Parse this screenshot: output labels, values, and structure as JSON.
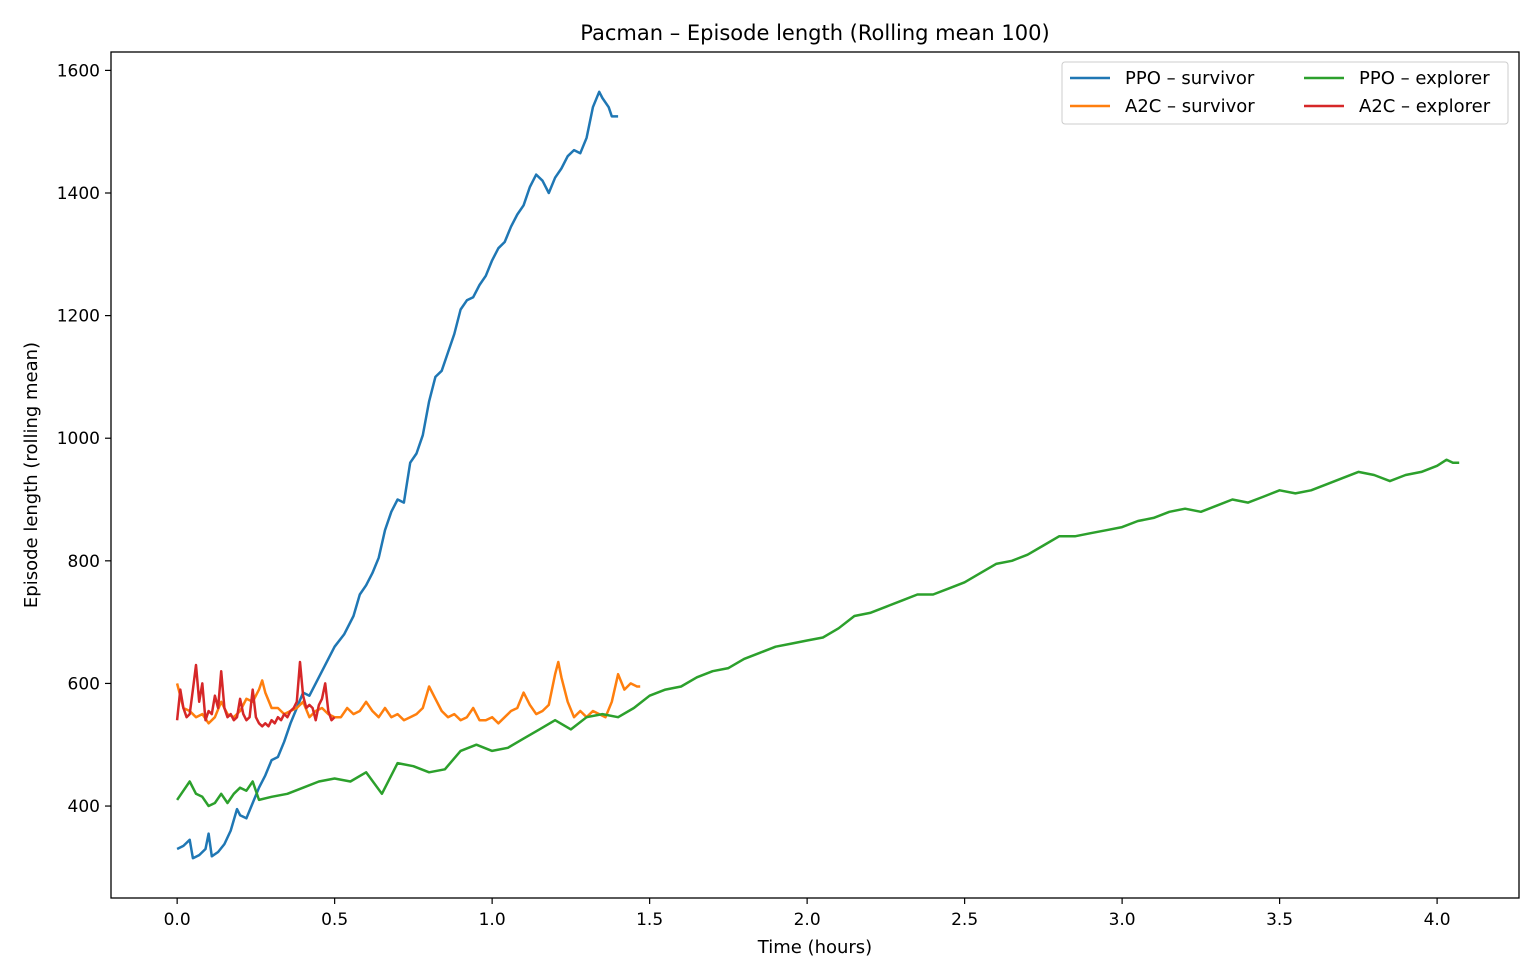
{
  "chart_data": {
    "type": "line",
    "title": "Pacman – Episode length (Rolling mean 100)",
    "xlabel": "Time (hours)",
    "ylabel": "Episode length (rolling mean)",
    "xlim": [
      -0.21,
      4.26
    ],
    "ylim": [
      250,
      1630
    ],
    "xticks": [
      0.0,
      0.5,
      1.0,
      1.5,
      2.0,
      2.5,
      3.0,
      3.5,
      4.0
    ],
    "xtick_labels": [
      "0.0",
      "0.5",
      "1.0",
      "1.5",
      "2.0",
      "2.5",
      "3.0",
      "3.5",
      "4.0"
    ],
    "yticks": [
      400,
      600,
      800,
      1000,
      1200,
      1400,
      1600
    ],
    "ytick_labels": [
      "400",
      "600",
      "800",
      "1000",
      "1200",
      "1400",
      "1600"
    ],
    "grid": false,
    "legend_position": "top-right",
    "legend_columns": 2,
    "series": [
      {
        "name": "PPO – survivor",
        "color": "#1f77b4",
        "points": [
          [
            0.0,
            330
          ],
          [
            0.02,
            335
          ],
          [
            0.04,
            345
          ],
          [
            0.05,
            315
          ],
          [
            0.07,
            320
          ],
          [
            0.09,
            330
          ],
          [
            0.1,
            355
          ],
          [
            0.11,
            318
          ],
          [
            0.13,
            325
          ],
          [
            0.15,
            338
          ],
          [
            0.17,
            360
          ],
          [
            0.19,
            395
          ],
          [
            0.2,
            385
          ],
          [
            0.22,
            380
          ],
          [
            0.24,
            405
          ],
          [
            0.26,
            430
          ],
          [
            0.28,
            450
          ],
          [
            0.3,
            475
          ],
          [
            0.32,
            480
          ],
          [
            0.34,
            505
          ],
          [
            0.36,
            535
          ],
          [
            0.38,
            560
          ],
          [
            0.4,
            585
          ],
          [
            0.42,
            580
          ],
          [
            0.44,
            600
          ],
          [
            0.46,
            620
          ],
          [
            0.48,
            640
          ],
          [
            0.5,
            660
          ],
          [
            0.53,
            680
          ],
          [
            0.56,
            710
          ],
          [
            0.58,
            745
          ],
          [
            0.6,
            760
          ],
          [
            0.62,
            780
          ],
          [
            0.64,
            805
          ],
          [
            0.66,
            850
          ],
          [
            0.68,
            880
          ],
          [
            0.7,
            900
          ],
          [
            0.72,
            895
          ],
          [
            0.74,
            960
          ],
          [
            0.76,
            975
          ],
          [
            0.78,
            1005
          ],
          [
            0.8,
            1060
          ],
          [
            0.82,
            1100
          ],
          [
            0.84,
            1110
          ],
          [
            0.86,
            1140
          ],
          [
            0.88,
            1170
          ],
          [
            0.9,
            1210
          ],
          [
            0.92,
            1225
          ],
          [
            0.94,
            1230
          ],
          [
            0.96,
            1250
          ],
          [
            0.98,
            1265
          ],
          [
            1.0,
            1290
          ],
          [
            1.02,
            1310
          ],
          [
            1.04,
            1320
          ],
          [
            1.06,
            1345
          ],
          [
            1.08,
            1365
          ],
          [
            1.1,
            1380
          ],
          [
            1.12,
            1410
          ],
          [
            1.14,
            1430
          ],
          [
            1.16,
            1420
          ],
          [
            1.18,
            1400
          ],
          [
            1.2,
            1425
          ],
          [
            1.22,
            1440
          ],
          [
            1.24,
            1460
          ],
          [
            1.26,
            1470
          ],
          [
            1.28,
            1465
          ],
          [
            1.3,
            1490
          ],
          [
            1.32,
            1540
          ],
          [
            1.34,
            1565
          ],
          [
            1.35,
            1555
          ],
          [
            1.37,
            1540
          ],
          [
            1.38,
            1525
          ],
          [
            1.4,
            1525
          ]
        ]
      },
      {
        "name": "A2C – survivor",
        "color": "#ff7f0e",
        "points": [
          [
            0.0,
            600
          ],
          [
            0.02,
            560
          ],
          [
            0.04,
            555
          ],
          [
            0.06,
            545
          ],
          [
            0.08,
            550
          ],
          [
            0.1,
            535
          ],
          [
            0.12,
            545
          ],
          [
            0.14,
            570
          ],
          [
            0.16,
            550
          ],
          [
            0.18,
            545
          ],
          [
            0.2,
            555
          ],
          [
            0.22,
            575
          ],
          [
            0.24,
            570
          ],
          [
            0.26,
            590
          ],
          [
            0.27,
            605
          ],
          [
            0.28,
            585
          ],
          [
            0.3,
            560
          ],
          [
            0.32,
            560
          ],
          [
            0.34,
            550
          ],
          [
            0.36,
            555
          ],
          [
            0.38,
            560
          ],
          [
            0.4,
            570
          ],
          [
            0.42,
            545
          ],
          [
            0.44,
            555
          ],
          [
            0.46,
            560
          ],
          [
            0.48,
            550
          ],
          [
            0.5,
            545
          ],
          [
            0.52,
            545
          ],
          [
            0.54,
            560
          ],
          [
            0.56,
            550
          ],
          [
            0.58,
            555
          ],
          [
            0.6,
            570
          ],
          [
            0.62,
            555
          ],
          [
            0.64,
            545
          ],
          [
            0.66,
            560
          ],
          [
            0.68,
            545
          ],
          [
            0.7,
            550
          ],
          [
            0.72,
            540
          ],
          [
            0.74,
            545
          ],
          [
            0.76,
            550
          ],
          [
            0.78,
            560
          ],
          [
            0.8,
            595
          ],
          [
            0.82,
            575
          ],
          [
            0.84,
            555
          ],
          [
            0.86,
            545
          ],
          [
            0.88,
            550
          ],
          [
            0.9,
            540
          ],
          [
            0.92,
            545
          ],
          [
            0.94,
            560
          ],
          [
            0.96,
            540
          ],
          [
            0.98,
            540
          ],
          [
            1.0,
            545
          ],
          [
            1.02,
            535
          ],
          [
            1.04,
            545
          ],
          [
            1.06,
            555
          ],
          [
            1.08,
            560
          ],
          [
            1.1,
            585
          ],
          [
            1.12,
            565
          ],
          [
            1.14,
            550
          ],
          [
            1.16,
            555
          ],
          [
            1.18,
            565
          ],
          [
            1.2,
            615
          ],
          [
            1.21,
            635
          ],
          [
            1.22,
            610
          ],
          [
            1.24,
            570
          ],
          [
            1.26,
            545
          ],
          [
            1.28,
            555
          ],
          [
            1.3,
            545
          ],
          [
            1.32,
            555
          ],
          [
            1.34,
            550
          ],
          [
            1.36,
            545
          ],
          [
            1.38,
            570
          ],
          [
            1.4,
            615
          ],
          [
            1.42,
            590
          ],
          [
            1.44,
            600
          ],
          [
            1.46,
            595
          ],
          [
            1.47,
            595
          ]
        ]
      },
      {
        "name": "PPO – explorer",
        "color": "#2ca02c",
        "points": [
          [
            0.0,
            410
          ],
          [
            0.02,
            425
          ],
          [
            0.04,
            440
          ],
          [
            0.06,
            420
          ],
          [
            0.08,
            415
          ],
          [
            0.1,
            400
          ],
          [
            0.12,
            405
          ],
          [
            0.14,
            420
          ],
          [
            0.16,
            405
          ],
          [
            0.18,
            420
          ],
          [
            0.2,
            430
          ],
          [
            0.22,
            425
          ],
          [
            0.24,
            440
          ],
          [
            0.26,
            410
          ],
          [
            0.3,
            415
          ],
          [
            0.35,
            420
          ],
          [
            0.4,
            430
          ],
          [
            0.45,
            440
          ],
          [
            0.5,
            445
          ],
          [
            0.55,
            440
          ],
          [
            0.6,
            455
          ],
          [
            0.65,
            420
          ],
          [
            0.7,
            470
          ],
          [
            0.75,
            465
          ],
          [
            0.8,
            455
          ],
          [
            0.85,
            460
          ],
          [
            0.9,
            490
          ],
          [
            0.95,
            500
          ],
          [
            1.0,
            490
          ],
          [
            1.05,
            495
          ],
          [
            1.1,
            510
          ],
          [
            1.15,
            525
          ],
          [
            1.2,
            540
          ],
          [
            1.25,
            525
          ],
          [
            1.3,
            545
          ],
          [
            1.35,
            550
          ],
          [
            1.4,
            545
          ],
          [
            1.45,
            560
          ],
          [
            1.5,
            580
          ],
          [
            1.55,
            590
          ],
          [
            1.6,
            595
          ],
          [
            1.65,
            610
          ],
          [
            1.7,
            620
          ],
          [
            1.75,
            625
          ],
          [
            1.8,
            640
          ],
          [
            1.85,
            650
          ],
          [
            1.9,
            660
          ],
          [
            1.95,
            665
          ],
          [
            2.0,
            670
          ],
          [
            2.05,
            675
          ],
          [
            2.1,
            690
          ],
          [
            2.15,
            710
          ],
          [
            2.2,
            715
          ],
          [
            2.25,
            725
          ],
          [
            2.3,
            735
          ],
          [
            2.35,
            745
          ],
          [
            2.4,
            745
          ],
          [
            2.45,
            755
          ],
          [
            2.5,
            765
          ],
          [
            2.55,
            780
          ],
          [
            2.6,
            795
          ],
          [
            2.65,
            800
          ],
          [
            2.7,
            810
          ],
          [
            2.75,
            825
          ],
          [
            2.8,
            840
          ],
          [
            2.85,
            840
          ],
          [
            2.9,
            845
          ],
          [
            2.95,
            850
          ],
          [
            3.0,
            855
          ],
          [
            3.05,
            865
          ],
          [
            3.1,
            870
          ],
          [
            3.15,
            880
          ],
          [
            3.2,
            885
          ],
          [
            3.25,
            880
          ],
          [
            3.3,
            890
          ],
          [
            3.35,
            900
          ],
          [
            3.4,
            895
          ],
          [
            3.45,
            905
          ],
          [
            3.5,
            915
          ],
          [
            3.55,
            910
          ],
          [
            3.6,
            915
          ],
          [
            3.65,
            925
          ],
          [
            3.7,
            935
          ],
          [
            3.75,
            945
          ],
          [
            3.8,
            940
          ],
          [
            3.85,
            930
          ],
          [
            3.9,
            940
          ],
          [
            3.95,
            945
          ],
          [
            4.0,
            955
          ],
          [
            4.03,
            965
          ],
          [
            4.05,
            960
          ],
          [
            4.07,
            960
          ]
        ]
      },
      {
        "name": "A2C – explorer",
        "color": "#d62728",
        "points": [
          [
            0.0,
            540
          ],
          [
            0.01,
            590
          ],
          [
            0.02,
            560
          ],
          [
            0.03,
            545
          ],
          [
            0.04,
            550
          ],
          [
            0.05,
            590
          ],
          [
            0.06,
            630
          ],
          [
            0.07,
            570
          ],
          [
            0.08,
            600
          ],
          [
            0.09,
            540
          ],
          [
            0.1,
            555
          ],
          [
            0.11,
            550
          ],
          [
            0.12,
            580
          ],
          [
            0.13,
            560
          ],
          [
            0.14,
            620
          ],
          [
            0.15,
            560
          ],
          [
            0.16,
            545
          ],
          [
            0.17,
            550
          ],
          [
            0.18,
            540
          ],
          [
            0.19,
            545
          ],
          [
            0.2,
            575
          ],
          [
            0.21,
            550
          ],
          [
            0.22,
            540
          ],
          [
            0.23,
            545
          ],
          [
            0.24,
            590
          ],
          [
            0.25,
            545
          ],
          [
            0.26,
            535
          ],
          [
            0.27,
            530
          ],
          [
            0.28,
            535
          ],
          [
            0.29,
            530
          ],
          [
            0.3,
            540
          ],
          [
            0.31,
            535
          ],
          [
            0.32,
            545
          ],
          [
            0.33,
            540
          ],
          [
            0.34,
            550
          ],
          [
            0.35,
            545
          ],
          [
            0.36,
            555
          ],
          [
            0.37,
            560
          ],
          [
            0.38,
            570
          ],
          [
            0.39,
            635
          ],
          [
            0.4,
            580
          ],
          [
            0.41,
            560
          ],
          [
            0.42,
            565
          ],
          [
            0.43,
            560
          ],
          [
            0.44,
            540
          ],
          [
            0.45,
            565
          ],
          [
            0.46,
            575
          ],
          [
            0.47,
            600
          ],
          [
            0.48,
            555
          ],
          [
            0.49,
            540
          ],
          [
            0.5,
            545
          ]
        ]
      }
    ]
  }
}
